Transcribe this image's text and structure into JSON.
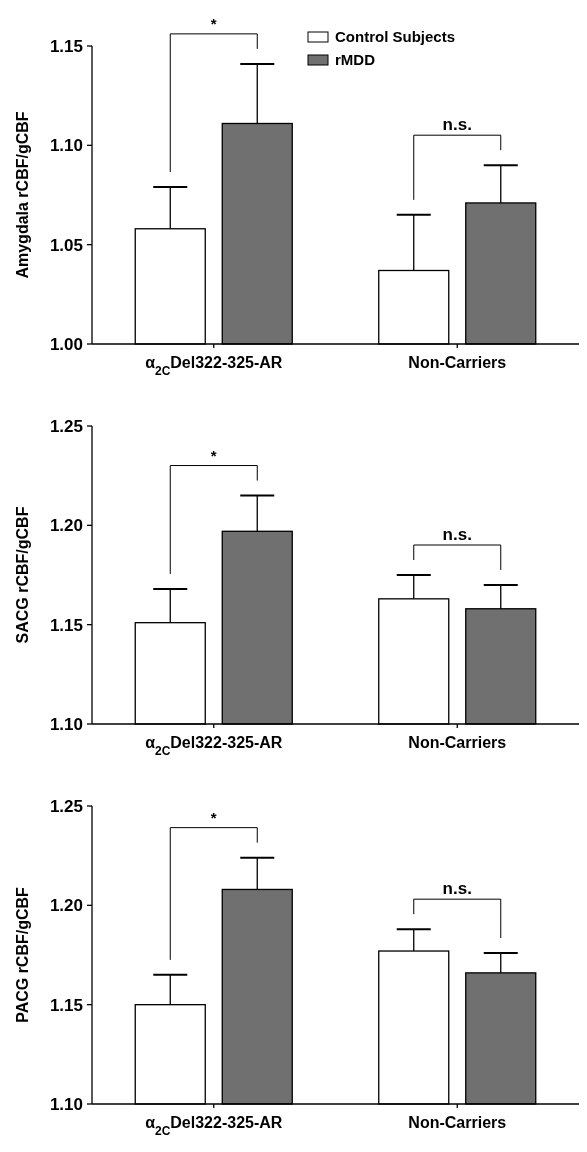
{
  "chart_data": [
    {
      "type": "bar",
      "ylabel": "Amygdala rCBF/gCBF",
      "categories": [
        "α$_{2C}$Del322-325-AR",
        "Non-Carriers"
      ],
      "ylim": [
        1.0,
        1.15
      ],
      "yticks": [
        {
          "value": 1.0,
          "label": "1.00"
        },
        {
          "value": 1.05,
          "label": "1.05"
        },
        {
          "value": 1.1,
          "label": "1.10"
        },
        {
          "value": 1.15,
          "label": "1.15"
        }
      ],
      "legend": "top right",
      "annotations": [
        "*",
        "n.s."
      ],
      "series": [
        {
          "name": "Control Subjects",
          "color": "#ffffff",
          "values": [
            1.058,
            1.037
          ],
          "errors": [
            [
              1.058,
              1.079
            ],
            [
              1.037,
              1.065
            ]
          ]
        },
        {
          "name": "rMDD",
          "color": "#707070",
          "values": [
            1.111,
            1.071
          ],
          "errors": [
            [
              1.111,
              1.141
            ],
            [
              1.071,
              1.09
            ]
          ]
        }
      ]
    },
    {
      "type": "bar",
      "ylabel": "SACG rCBF/gCBF",
      "categories": [
        "α$_{2C}$Del322-325-AR",
        "Non-Carriers"
      ],
      "ylim": [
        1.1,
        1.25
      ],
      "yticks": [
        {
          "value": 1.1,
          "label": "1.10"
        },
        {
          "value": 1.15,
          "label": "1.15"
        },
        {
          "value": 1.2,
          "label": "1.20"
        },
        {
          "value": 1.25,
          "label": "1.25"
        }
      ],
      "annotations": [
        "*",
        "n.s."
      ],
      "series": [
        {
          "color": "#ffffff",
          "values": [
            1.151,
            1.163
          ],
          "errors": [
            [
              1.151,
              1.168
            ],
            [
              1.163,
              1.175
            ]
          ]
        },
        {
          "color": "#707070",
          "values": [
            1.197,
            1.158
          ],
          "errors": [
            [
              1.197,
              1.215
            ],
            [
              1.158,
              1.17
            ]
          ]
        }
      ]
    },
    {
      "type": "bar",
      "ylabel": "PACG rCBF/gCBF",
      "categories": [
        "α$_{2C}$Del322-325-AR",
        "Non-Carriers"
      ],
      "ylim": [
        1.1,
        1.25
      ],
      "yticks": [
        {
          "value": 1.1,
          "label": "1.10"
        },
        {
          "value": 1.15,
          "label": "1.15"
        },
        {
          "value": 1.2,
          "label": "1.20"
        },
        {
          "value": 1.25,
          "label": "1.25"
        }
      ],
      "annotations": [
        "*",
        "n.s."
      ],
      "series": [
        {
          "color": "#ffffff",
          "values": [
            1.15,
            1.177
          ],
          "errors": [
            [
              1.15,
              1.165
            ],
            [
              1.177,
              1.188
            ]
          ]
        },
        {
          "color": "#707070",
          "values": [
            1.208,
            1.166
          ],
          "errors": [
            [
              1.208,
              1.224
            ],
            [
              1.166,
              1.176
            ]
          ]
        }
      ]
    }
  ]
}
